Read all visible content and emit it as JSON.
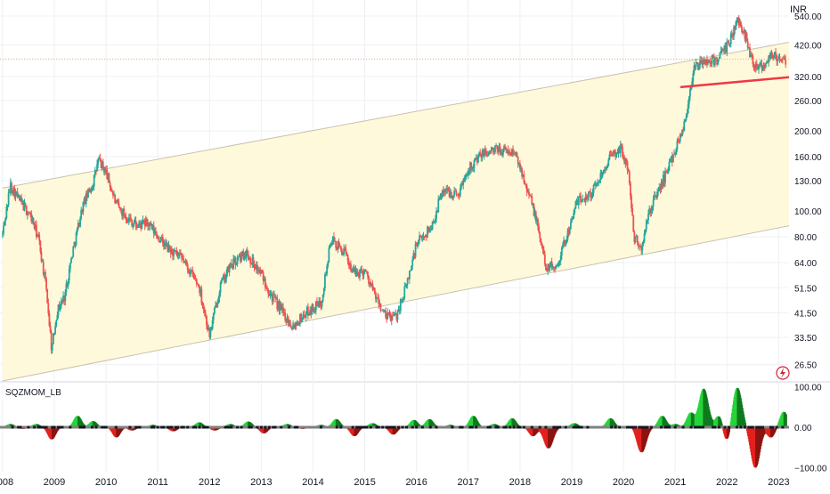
{
  "currency": "INR",
  "indicator_name": "SQZMOM_LB",
  "colors": {
    "bull": "#26a69a",
    "bear": "#ef5350",
    "channel_fill": "#fff9db",
    "channel_line": "#c7c2b0",
    "support_line": "#f23645",
    "mom_pos": "#26d43a",
    "mom_neg": "#e3211c",
    "grid": "#eef0f3"
  },
  "chart_data": [
    {
      "type": "candlestick",
      "scale": "log",
      "ylim": [
        23,
        620
      ],
      "x_range": [
        2007.95,
        2023.2
      ],
      "y_tick_labels": [
        "540.00",
        "420.00",
        "320.00",
        "260.00",
        "200.00",
        "160.00",
        "130.00",
        "100.00",
        "80.00",
        "64.00",
        "51.50",
        "41.50",
        "33.50",
        "26.50"
      ],
      "x_tick_labels": [
        "2008",
        "2009",
        "2010",
        "2011",
        "2012",
        "2013",
        "2014",
        "2015",
        "2016",
        "2017",
        "2018",
        "2019",
        "2020",
        "2021",
        "2022",
        "2023"
      ],
      "price_path": [
        [
          2008.0,
          82
        ],
        [
          2008.15,
          125
        ],
        [
          2008.35,
          108
        ],
        [
          2008.55,
          95
        ],
        [
          2008.7,
          78
        ],
        [
          2008.85,
          50
        ],
        [
          2008.95,
          30
        ],
        [
          2009.05,
          42
        ],
        [
          2009.2,
          48
        ],
        [
          2009.35,
          70
        ],
        [
          2009.55,
          105
        ],
        [
          2009.75,
          128
        ],
        [
          2009.85,
          155
        ],
        [
          2010.0,
          140
        ],
        [
          2010.2,
          105
        ],
        [
          2010.4,
          95
        ],
        [
          2010.6,
          88
        ],
        [
          2010.8,
          90
        ],
        [
          2011.0,
          80
        ],
        [
          2011.2,
          72
        ],
        [
          2011.5,
          65
        ],
        [
          2011.8,
          52
        ],
        [
          2012.0,
          34
        ],
        [
          2012.2,
          52
        ],
        [
          2012.4,
          62
        ],
        [
          2012.7,
          70
        ],
        [
          2013.0,
          58
        ],
        [
          2013.2,
          48
        ],
        [
          2013.4,
          42
        ],
        [
          2013.6,
          37
        ],
        [
          2013.9,
          42
        ],
        [
          2014.15,
          45
        ],
        [
          2014.35,
          78
        ],
        [
          2014.6,
          70
        ],
        [
          2014.8,
          58
        ],
        [
          2015.0,
          60
        ],
        [
          2015.2,
          48
        ],
        [
          2015.4,
          40
        ],
        [
          2015.6,
          40
        ],
        [
          2015.8,
          52
        ],
        [
          2016.0,
          75
        ],
        [
          2016.3,
          88
        ],
        [
          2016.5,
          120
        ],
        [
          2016.8,
          115
        ],
        [
          2017.0,
          145
        ],
        [
          2017.3,
          165
        ],
        [
          2017.6,
          170
        ],
        [
          2017.9,
          165
        ],
        [
          2018.1,
          130
        ],
        [
          2018.3,
          95
        ],
        [
          2018.5,
          62
        ],
        [
          2018.7,
          62
        ],
        [
          2018.9,
          80
        ],
        [
          2019.1,
          108
        ],
        [
          2019.4,
          118
        ],
        [
          2019.7,
          155
        ],
        [
          2019.95,
          172
        ],
        [
          2020.1,
          140
        ],
        [
          2020.2,
          80
        ],
        [
          2020.35,
          72
        ],
        [
          2020.5,
          100
        ],
        [
          2020.8,
          135
        ],
        [
          2021.0,
          170
        ],
        [
          2021.2,
          220
        ],
        [
          2021.35,
          340
        ],
        [
          2021.5,
          360
        ],
        [
          2021.8,
          370
        ],
        [
          2022.0,
          410
        ],
        [
          2022.2,
          520
        ],
        [
          2022.35,
          460
        ],
        [
          2022.5,
          360
        ],
        [
          2022.7,
          350
        ],
        [
          2022.85,
          390
        ],
        [
          2023.0,
          370
        ],
        [
          2023.15,
          360
        ]
      ],
      "last_price": 372,
      "channel": {
        "upper": [
          [
            2008.0,
            122
          ],
          [
            2023.2,
            430
          ]
        ],
        "lower": [
          [
            2008.0,
            23
          ],
          [
            2023.2,
            88
          ]
        ]
      },
      "support_line": [
        [
          2021.1,
          292
        ],
        [
          2023.2,
          318
        ]
      ]
    },
    {
      "type": "histogram",
      "name": "SQZMOM_LB",
      "ylim": [
        -110,
        110
      ],
      "y_tick_labels": [
        "100.00",
        "0.00",
        "−100.00"
      ],
      "x_range": [
        2007.95,
        2023.2
      ],
      "lobes": [
        [
          2008.15,
          8
        ],
        [
          2008.4,
          -4
        ],
        [
          2008.65,
          8
        ],
        [
          2008.95,
          -30
        ],
        [
          2009.45,
          28
        ],
        [
          2009.75,
          15
        ],
        [
          2010.2,
          -25
        ],
        [
          2010.5,
          -8
        ],
        [
          2010.9,
          6
        ],
        [
          2011.3,
          -10
        ],
        [
          2011.8,
          12
        ],
        [
          2012.1,
          -8
        ],
        [
          2012.4,
          8
        ],
        [
          2012.75,
          14
        ],
        [
          2013.05,
          -15
        ],
        [
          2013.5,
          8
        ],
        [
          2013.8,
          -4
        ],
        [
          2014.15,
          6
        ],
        [
          2014.45,
          20
        ],
        [
          2014.8,
          -22
        ],
        [
          2015.15,
          10
        ],
        [
          2015.55,
          -18
        ],
        [
          2015.95,
          18
        ],
        [
          2016.25,
          20
        ],
        [
          2016.65,
          6
        ],
        [
          2017.1,
          28
        ],
        [
          2017.5,
          8
        ],
        [
          2017.85,
          22
        ],
        [
          2018.25,
          -22
        ],
        [
          2018.55,
          -52
        ],
        [
          2019.05,
          10
        ],
        [
          2019.5,
          2
        ],
        [
          2019.75,
          22
        ],
        [
          2020.15,
          4
        ],
        [
          2020.35,
          -62
        ],
        [
          2020.75,
          28
        ],
        [
          2021.0,
          8
        ],
        [
          2021.3,
          35
        ],
        [
          2021.55,
          95
        ],
        [
          2021.85,
          30
        ],
        [
          2022.0,
          -38
        ],
        [
          2022.2,
          98
        ],
        [
          2022.55,
          -100
        ],
        [
          2022.85,
          -25
        ],
        [
          2023.1,
          38
        ]
      ]
    }
  ]
}
